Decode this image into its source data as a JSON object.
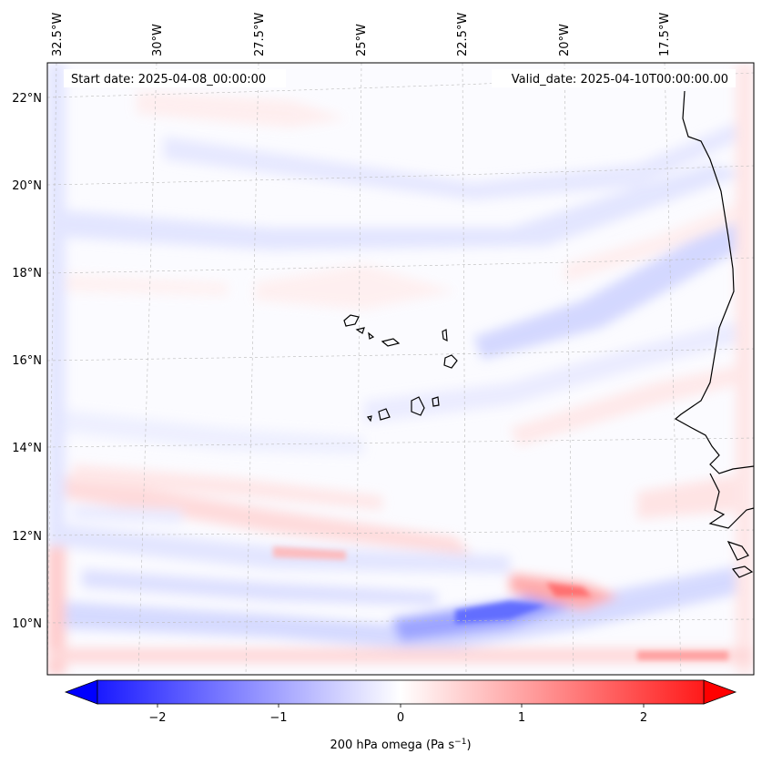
{
  "map": {
    "start_date": "Start date: 2025-04-08_00:00:00",
    "valid_date": "Valid_date: 2025-04-10T00:00:00.00",
    "lon_labels": [
      "32.5°W",
      "30°W",
      "27.5°W",
      "25°W",
      "22.5°W",
      "20°W",
      "17.5°W"
    ],
    "lat_labels": [
      "22°N",
      "20°N",
      "18°N",
      "16°N",
      "14°N",
      "12°N",
      "10°N"
    ],
    "colors": {
      "negative": "#0000ff",
      "zero": "#ffffff",
      "positive": "#ff0000",
      "coast": "#000000"
    }
  },
  "colorbar": {
    "tick_labels": [
      "−2",
      "−1",
      "0",
      "1",
      "2"
    ],
    "label": "200 hPa omega (Pa s",
    "label_superscript": "−1",
    "label_suffix": ")"
  }
}
